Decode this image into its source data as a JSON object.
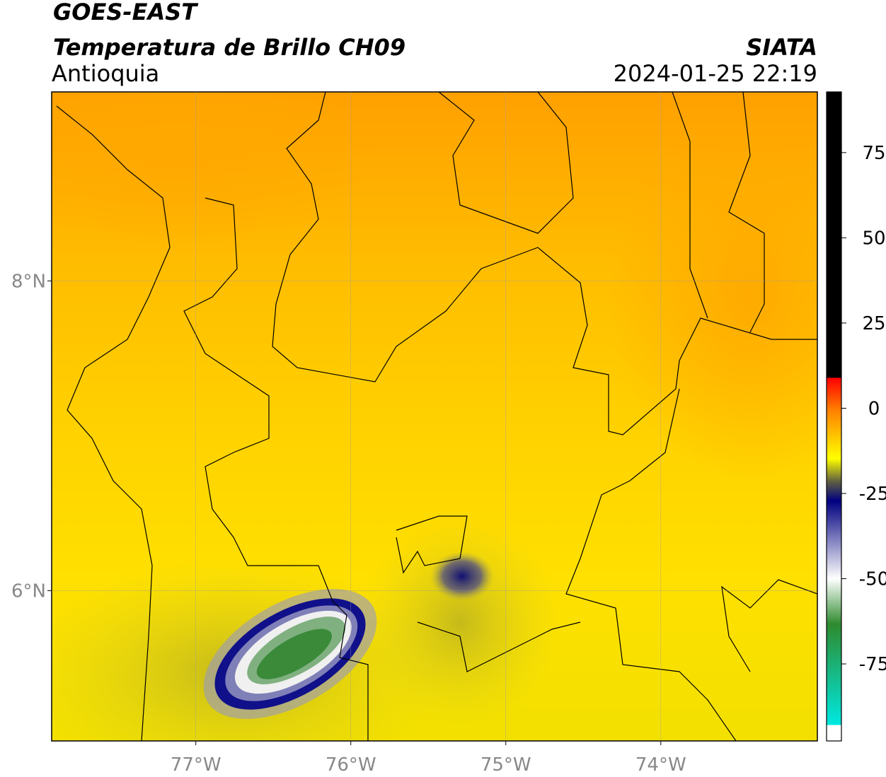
{
  "header": {
    "title": "GOES-EAST",
    "subtitle": "Temperatura de Brillo CH09",
    "region": "Antioquia",
    "source": "SIATA",
    "timestamp": "2024-01-25 22:19"
  },
  "map": {
    "xlim": [
      -77.93,
      -72.99
    ],
    "ylim": [
      5.03,
      9.22
    ],
    "lon_ticks": [
      {
        "value": -77,
        "label": "77°W"
      },
      {
        "value": -76,
        "label": "76°W"
      },
      {
        "value": -75,
        "label": "75°W"
      },
      {
        "value": -74,
        "label": "74°W"
      }
    ],
    "lat_ticks": [
      {
        "value": 8,
        "label": "8°N"
      },
      {
        "value": 6,
        "label": "6°N"
      }
    ]
  },
  "colorbar": {
    "lim": [
      -97.6,
      92.8
    ],
    "ticks": [
      75,
      50,
      25,
      0,
      -25,
      -50,
      -75
    ]
  }
}
